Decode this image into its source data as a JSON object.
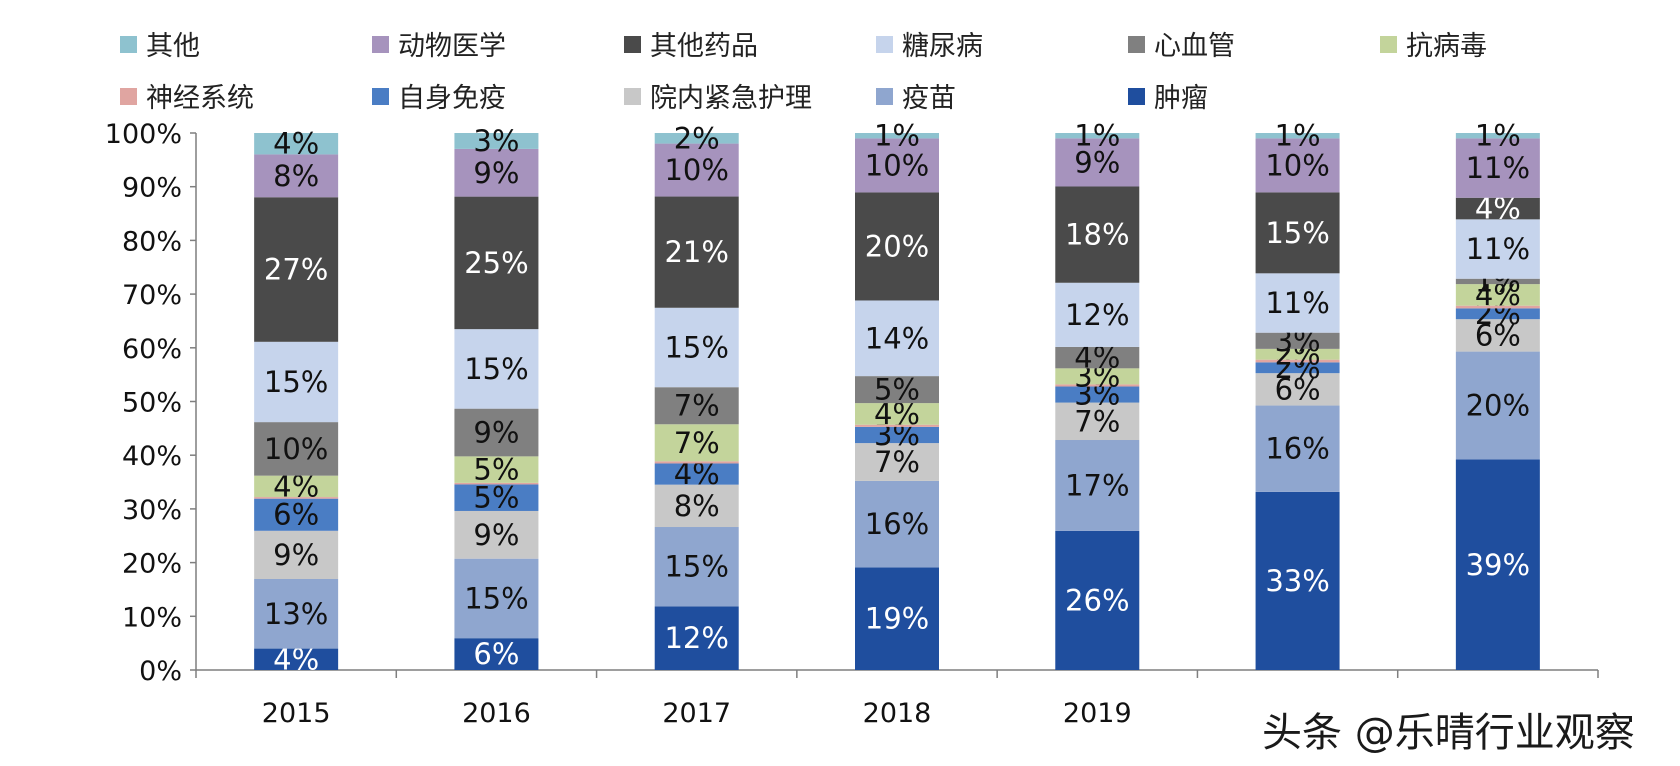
{
  "chart_data": {
    "type": "bar",
    "stacked": true,
    "categories": [
      "2015",
      "2016",
      "2017",
      "2018",
      "2019",
      "",
      ""
    ],
    "ylim": [
      0,
      100
    ],
    "yticks": [
      "0%",
      "10%",
      "20%",
      "30%",
      "40%",
      "50%",
      "60%",
      "70%",
      "80%",
      "90%",
      "100%"
    ],
    "series": [
      {
        "name": "肿瘤",
        "color": "#1f4e9e",
        "label_color": "#ffffff",
        "values": [
          4,
          6,
          12,
          19,
          26,
          33,
          39
        ]
      },
      {
        "name": "疫苗",
        "color": "#8fa6cf",
        "label_color": "#111111",
        "values": [
          13,
          15,
          15,
          16,
          17,
          16,
          20
        ]
      },
      {
        "name": "院内紧急护理",
        "color": "#c8c8c8",
        "label_color": "#111111",
        "values": [
          9,
          9,
          8,
          7,
          7,
          6,
          6
        ]
      },
      {
        "name": "自身免疫",
        "color": "#4a7dc4",
        "label_color": "#111111",
        "values": [
          6,
          5,
          4,
          3,
          3,
          2,
          2
        ]
      },
      {
        "name": "神经系统",
        "color": "#e0a5a1",
        "label_color": "#111111",
        "values": [
          0.3,
          0.3,
          0.4,
          0.4,
          0.4,
          0.5,
          0.5
        ]
      },
      {
        "name": "抗病毒",
        "color": "#c3d49b",
        "label_color": "#111111",
        "values": [
          4,
          5,
          7,
          4,
          3,
          2,
          4
        ]
      },
      {
        "name": "心血管",
        "color": "#808080",
        "label_color": "#111111",
        "values": [
          10,
          9,
          7,
          5,
          4,
          3,
          1
        ]
      },
      {
        "name": "糖尿病",
        "color": "#c6d4ec",
        "label_color": "#111111",
        "values": [
          15,
          15,
          15,
          14,
          12,
          11,
          11
        ]
      },
      {
        "name": "其他药品",
        "color": "#4a4a4a",
        "label_color": "#ffffff",
        "values": [
          27,
          25,
          21,
          20,
          18,
          15,
          4
        ]
      },
      {
        "name": "动物医学",
        "color": "#a693bd",
        "label_color": "#111111",
        "values": [
          8,
          9,
          10,
          10,
          9,
          10,
          11
        ]
      },
      {
        "name": "其他",
        "color": "#8ec2cf",
        "label_color": "#111111",
        "values": [
          4,
          3,
          2,
          1,
          1,
          1,
          1
        ]
      }
    ],
    "data_labels": [
      [
        "4%",
        "13%",
        "9%",
        "6%",
        "",
        "4%",
        "10%",
        "15%",
        "27%",
        "8%",
        "4%"
      ],
      [
        "6%",
        "15%",
        "9%",
        "5%",
        "",
        "5%",
        "9%",
        "15%",
        "25%",
        "9%",
        "3%"
      ],
      [
        "12%",
        "15%",
        "8%",
        "4%",
        "",
        "7%",
        "7%",
        "15%",
        "21%",
        "10%",
        "2%"
      ],
      [
        "19%",
        "16%",
        "7%",
        "3%",
        "",
        "4%",
        "5%",
        "14%",
        "20%",
        "10%",
        "1%"
      ],
      [
        "26%",
        "17%",
        "7%",
        "3%",
        "",
        "3%",
        "4%",
        "12%",
        "18%",
        "9%",
        "1%"
      ],
      [
        "33%",
        "16%",
        "6%",
        "2%",
        "",
        "2%",
        "3%",
        "11%",
        "15%",
        "10%",
        "1%"
      ],
      [
        "39%",
        "20%",
        "6%",
        "2%",
        "",
        "4%",
        "1%",
        "11%",
        "4%",
        "11%",
        "1%"
      ]
    ],
    "legend_order": [
      "其他",
      "动物医学",
      "其他药品",
      "糖尿病",
      "心血管",
      "抗病毒",
      "神经系统",
      "自身免疫",
      "院内紧急护理",
      "疫苗",
      "肿瘤"
    ]
  },
  "watermark": "头条 @乐晴行业观察"
}
